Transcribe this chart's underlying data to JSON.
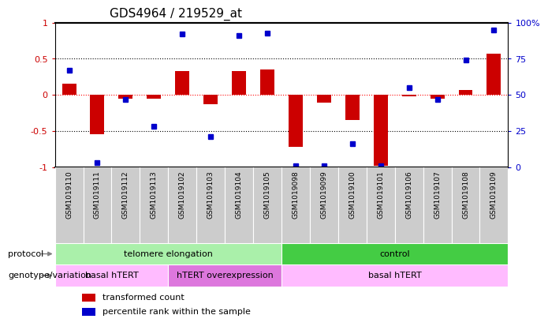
{
  "title": "GDS4964 / 219529_at",
  "samples": [
    "GSM1019110",
    "GSM1019111",
    "GSM1019112",
    "GSM1019113",
    "GSM1019102",
    "GSM1019103",
    "GSM1019104",
    "GSM1019105",
    "GSM1019098",
    "GSM1019099",
    "GSM1019100",
    "GSM1019101",
    "GSM1019106",
    "GSM1019107",
    "GSM1019108",
    "GSM1019109"
  ],
  "bar_values": [
    0.15,
    -0.55,
    -0.05,
    -0.05,
    0.33,
    -0.13,
    0.33,
    0.35,
    -0.72,
    -0.11,
    -0.35,
    -0.98,
    -0.02,
    -0.05,
    0.07,
    0.57
  ],
  "dot_percentiles": [
    67,
    3,
    47,
    28,
    92,
    21,
    91,
    93,
    1,
    1,
    16,
    1,
    55,
    47,
    74,
    95
  ],
  "ylim": [
    -1,
    1
  ],
  "y2lim": [
    0,
    100
  ],
  "yticks": [
    -1,
    -0.5,
    0,
    0.5,
    1
  ],
  "ytick_labels": [
    "-1",
    "-0.5",
    "0",
    "0.5",
    "1"
  ],
  "y2ticks": [
    0,
    25,
    50,
    75,
    100
  ],
  "y2tick_labels": [
    "0",
    "25",
    "50",
    "75",
    "100%"
  ],
  "bar_color": "#cc0000",
  "dot_color": "#0000cc",
  "dot_marker_size": 5,
  "bar_width": 0.5,
  "protocol_groups": [
    {
      "label": "telomere elongation",
      "start": 0,
      "end": 7,
      "color": "#aaf0aa"
    },
    {
      "label": "control",
      "start": 8,
      "end": 15,
      "color": "#44cc44"
    }
  ],
  "genotype_groups": [
    {
      "label": "basal hTERT",
      "start": 0,
      "end": 3,
      "color": "#ffbbff"
    },
    {
      "label": "hTERT overexpression",
      "start": 4,
      "end": 7,
      "color": "#dd77dd"
    },
    {
      "label": "basal hTERT",
      "start": 8,
      "end": 15,
      "color": "#ffbbff"
    }
  ],
  "xtick_bg_color": "#cccccc",
  "xtick_border_color": "#999999",
  "legend_items": [
    {
      "color": "#cc0000",
      "label": "transformed count"
    },
    {
      "color": "#0000cc",
      "label": "percentile rank within the sample"
    }
  ],
  "protocol_label": "protocol",
  "genotype_label": "genotype/variation",
  "fig_bg": "#ffffff"
}
